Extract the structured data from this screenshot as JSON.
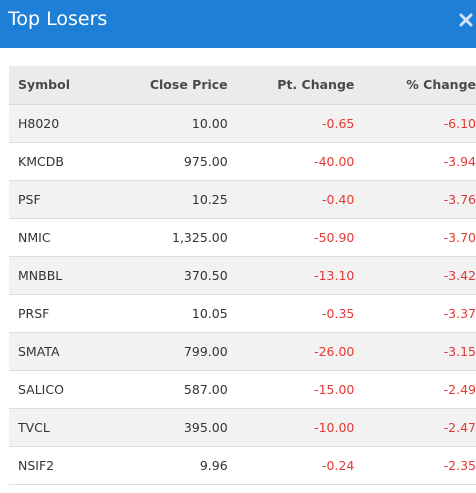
{
  "header": {
    "title": "Top Losers",
    "close_icon": "close-icon"
  },
  "colors": {
    "header_bg": "#1e7fd7",
    "negative": "#e53935"
  },
  "table": {
    "columns": [
      "Symbol",
      "Close Price",
      "Pt. Change",
      "% Change"
    ],
    "rows": [
      {
        "symbol": "H8020",
        "close": "10.00",
        "pt": "-0.65",
        "pct": "-6.10"
      },
      {
        "symbol": "KMCDB",
        "close": "975.00",
        "pt": "-40.00",
        "pct": "-3.94"
      },
      {
        "symbol": "PSF",
        "close": "10.25",
        "pt": "-0.40",
        "pct": "-3.76"
      },
      {
        "symbol": "NMIC",
        "close": "1,325.00",
        "pt": "-50.90",
        "pct": "-3.70"
      },
      {
        "symbol": "MNBBL",
        "close": "370.50",
        "pt": "-13.10",
        "pct": "-3.42"
      },
      {
        "symbol": "PRSF",
        "close": "10.05",
        "pt": "-0.35",
        "pct": "-3.37"
      },
      {
        "symbol": "SMATA",
        "close": "799.00",
        "pt": "-26.00",
        "pct": "-3.15"
      },
      {
        "symbol": "SALICO",
        "close": "587.00",
        "pt": "-15.00",
        "pct": "-2.49"
      },
      {
        "symbol": "TVCL",
        "close": "395.00",
        "pt": "-10.00",
        "pct": "-2.47"
      },
      {
        "symbol": "NSIF2",
        "close": "9.96",
        "pt": "-0.24",
        "pct": "-2.35"
      }
    ]
  }
}
